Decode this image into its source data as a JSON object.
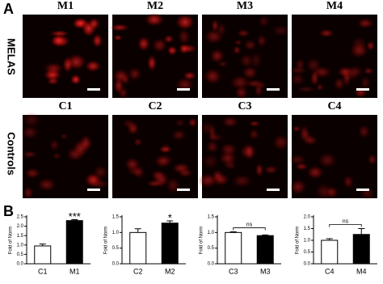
{
  "figure": {
    "panel_a_label": "A",
    "panel_b_label": "B",
    "row_labels": [
      "MELAS",
      "Controls"
    ],
    "image_labels": [
      [
        "M1",
        "M2",
        "M3",
        "M4"
      ],
      [
        "C1",
        "C2",
        "C3",
        "C4"
      ]
    ]
  },
  "chart_data": [
    {
      "type": "bar",
      "y_label": "Fold of Norm",
      "categories": [
        "C1",
        "M1"
      ],
      "values": [
        0.95,
        2.3
      ],
      "errors": [
        0.1,
        0.05
      ],
      "colors": [
        "#ffffff",
        "#000000"
      ],
      "ylim": [
        0,
        2.5
      ],
      "yticks": [
        {
          "value": 0,
          "label": "0.0"
        },
        0.5,
        {
          "value": 1,
          "label": "1.0"
        },
        1.5,
        {
          "value": 2,
          "label": "2.0"
        },
        2.5
      ],
      "annotation": {
        "text": "***",
        "bracket": false
      }
    },
    {
      "type": "bar",
      "y_label": "Fold of Norm",
      "categories": [
        "C2",
        "M2"
      ],
      "values": [
        1.0,
        1.3
      ],
      "errors": [
        0.12,
        0.07
      ],
      "colors": [
        "#ffffff",
        "#000000"
      ],
      "ylim": [
        0,
        1.5
      ],
      "yticks": [
        {
          "value": 0,
          "label": "0.0"
        },
        0.5,
        {
          "value": 1,
          "label": "1.0"
        },
        1.5
      ],
      "annotation": {
        "text": "*",
        "bracket": false
      }
    },
    {
      "type": "bar",
      "y_label": "Fold of Norm",
      "categories": [
        "C3",
        "M3"
      ],
      "values": [
        1.0,
        0.9
      ],
      "errors": [
        0.02,
        0.02
      ],
      "colors": [
        "#ffffff",
        "#000000"
      ],
      "ylim": [
        0,
        1.5
      ],
      "yticks": [
        {
          "value": 0,
          "label": "0.0"
        },
        0.5,
        {
          "value": 1,
          "label": "1.0"
        },
        1.5
      ],
      "annotation": {
        "text": "ns",
        "bracket": true
      }
    },
    {
      "type": "bar",
      "y_label": "Fold of Norm",
      "categories": [
        "C4",
        "M4"
      ],
      "values": [
        1.0,
        1.25
      ],
      "errors": [
        0.07,
        0.25
      ],
      "colors": [
        "#ffffff",
        "#000000"
      ],
      "ylim": [
        0,
        2
      ],
      "yticks": [
        {
          "value": 0,
          "label": "0.0"
        },
        0.5,
        {
          "value": 1,
          "label": "1.0"
        },
        1.5,
        {
          "value": 2,
          "label": "2.0"
        }
      ],
      "annotation": {
        "text": "ns",
        "bracket": true
      }
    }
  ]
}
